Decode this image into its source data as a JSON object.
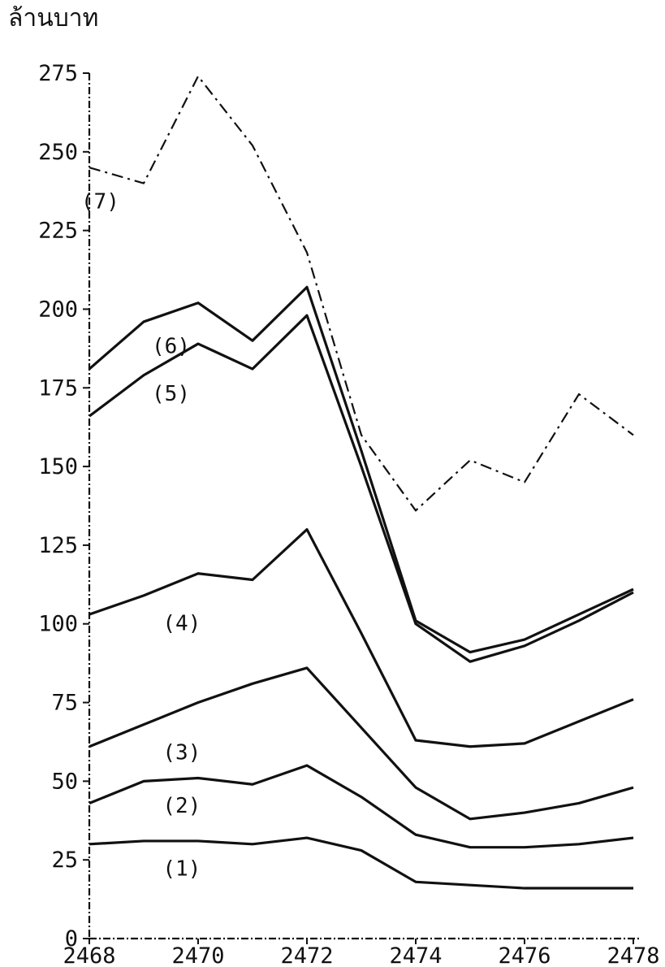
{
  "chart_data": {
    "type": "line",
    "title": "",
    "ylabel": "ล้านบาท",
    "xlabel": "",
    "x_ticks": [
      "2468",
      "2470",
      "2472",
      "2474",
      "2476",
      "2478"
    ],
    "y_ticks": [
      "0",
      "25",
      "50",
      "75",
      "100",
      "125",
      "150",
      "175",
      "200",
      "225",
      "250",
      "275"
    ],
    "xlim": [
      2468,
      2478
    ],
    "ylim": [
      0,
      275
    ],
    "grid": false,
    "x": [
      2468,
      2469,
      2470,
      2471,
      2472,
      2473,
      2474,
      2475,
      2476,
      2477,
      2478
    ],
    "series": [
      {
        "name": "(1)",
        "style": "solid",
        "values": [
          30,
          31,
          31,
          30,
          32,
          28,
          18,
          17,
          16,
          16,
          16
        ]
      },
      {
        "name": "(2)",
        "style": "solid",
        "values": [
          43,
          50,
          51,
          49,
          55,
          45,
          33,
          29,
          29,
          30,
          32
        ]
      },
      {
        "name": "(3)",
        "style": "solid",
        "values": [
          61,
          68,
          75,
          81,
          86,
          67,
          48,
          38,
          40,
          43,
          48
        ]
      },
      {
        "name": "(4)",
        "style": "solid",
        "values": [
          103,
          109,
          116,
          114,
          130,
          97,
          63,
          61,
          62,
          69,
          76
        ]
      },
      {
        "name": "(5)",
        "style": "solid",
        "values": [
          166,
          179,
          189,
          181,
          198,
          150,
          100,
          88,
          93,
          101,
          110
        ]
      },
      {
        "name": "(6)",
        "style": "solid",
        "values": [
          181,
          196,
          202,
          190,
          207,
          155,
          101,
          91,
          95,
          103,
          111
        ]
      },
      {
        "name": "(7)",
        "style": "dashed",
        "values": [
          245,
          240,
          274,
          252,
          218,
          160,
          136,
          152,
          145,
          173,
          160
        ]
      }
    ],
    "colors": {
      "line": "#111111",
      "background": "#ffffff"
    }
  }
}
